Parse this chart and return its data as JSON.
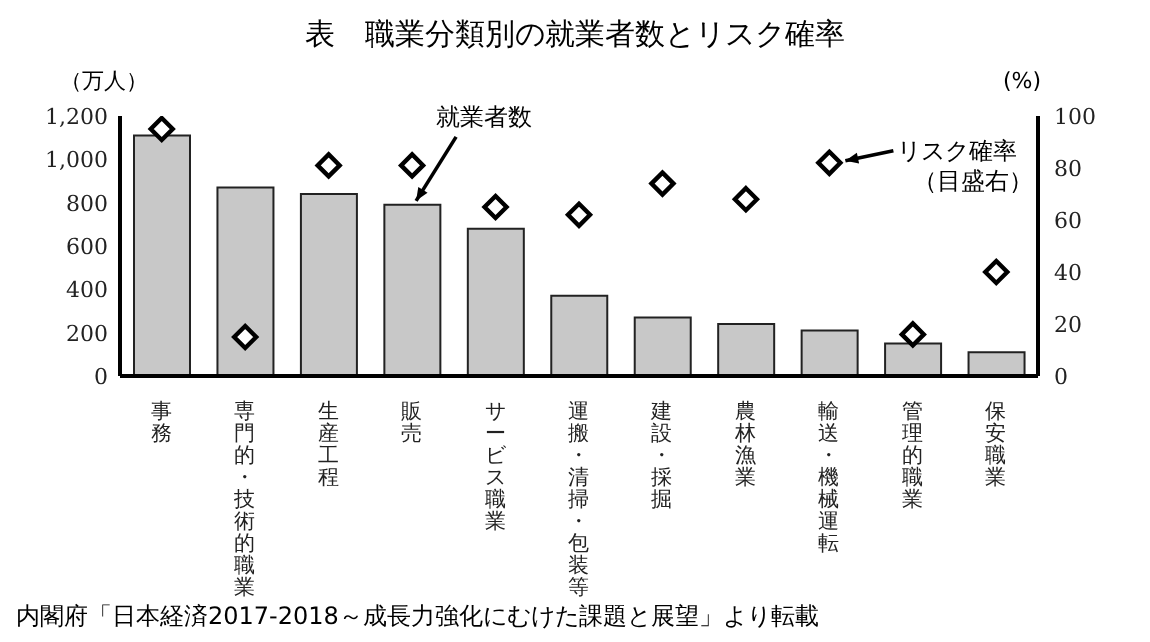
{
  "chart_data": {
    "type": "bar",
    "title": "表　職業分類別の就業者数とリスク確率",
    "ylabel": "（万人）",
    "y2label": "(%)",
    "categories": [
      "事務",
      "専門的・技術的職業",
      "生産工程",
      "販売",
      "サービス職業",
      "運搬・清掃・包装等",
      "建設・採掘",
      "農林漁業",
      "輸送・機械運転",
      "管理的職業",
      "保安職業"
    ],
    "series": [
      {
        "type": "bar",
        "color": "#c8c8c8",
        "values": [
          1110,
          870,
          840,
          790,
          680,
          370,
          270,
          240,
          210,
          150,
          110
        ]
      },
      {
        "type": "scatter",
        "axis": "y2",
        "color": "#000000",
        "values": [
          95,
          15,
          81,
          81,
          65,
          62,
          74,
          68,
          82,
          16,
          40
        ]
      }
    ],
    "ylim": [
      0,
      1200
    ],
    "yticks": [
      0,
      200,
      400,
      600,
      800,
      {
        "value": 1000,
        "label": "1,000"
      },
      {
        "value": 1200,
        "label": "1,200"
      }
    ],
    "y2lim": [
      0,
      100
    ],
    "y2ticks": [
      0,
      20,
      40,
      60,
      80,
      100
    ],
    "marker": "diamond",
    "grid": false,
    "legend": false,
    "annotations": [
      {
        "text": "就業者数",
        "x": "販売",
        "y": 790
      },
      {
        "text": "リスク確率（目盛右）",
        "x": "輸送・機械運転",
        "y": 984
      },
      "内閣府「日本経済2017-2018～成長力強化にむけた課題と展望」より転載"
    ]
  }
}
